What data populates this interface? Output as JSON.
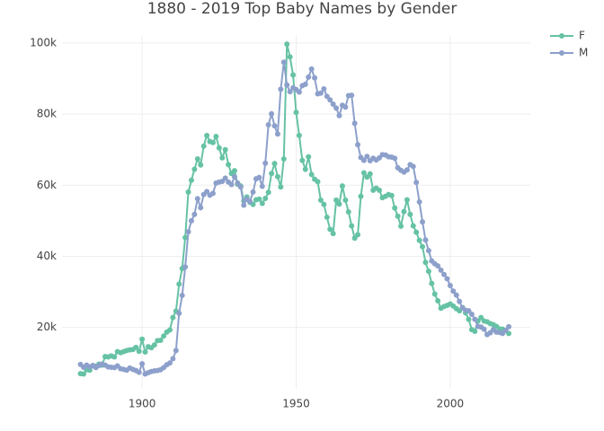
{
  "chart_data": {
    "type": "line",
    "title": "1880 - 2019 Top Baby Names by Gender",
    "x": [
      1880,
      1881,
      1882,
      1883,
      1884,
      1885,
      1886,
      1887,
      1888,
      1889,
      1890,
      1891,
      1892,
      1893,
      1894,
      1895,
      1896,
      1897,
      1898,
      1899,
      1900,
      1901,
      1902,
      1903,
      1904,
      1905,
      1906,
      1907,
      1908,
      1909,
      1910,
      1911,
      1912,
      1913,
      1914,
      1915,
      1916,
      1917,
      1918,
      1919,
      1920,
      1921,
      1922,
      1923,
      1924,
      1925,
      1926,
      1927,
      1928,
      1929,
      1930,
      1931,
      1932,
      1933,
      1934,
      1935,
      1936,
      1937,
      1938,
      1939,
      1940,
      1941,
      1942,
      1943,
      1944,
      1945,
      1946,
      1947,
      1948,
      1949,
      1950,
      1951,
      1952,
      1953,
      1954,
      1955,
      1956,
      1957,
      1958,
      1959,
      1960,
      1961,
      1962,
      1963,
      1964,
      1965,
      1966,
      1967,
      1968,
      1969,
      1970,
      1971,
      1972,
      1973,
      1974,
      1975,
      1976,
      1977,
      1978,
      1979,
      1980,
      1981,
      1982,
      1983,
      1984,
      1985,
      1986,
      1987,
      1988,
      1989,
      1990,
      1991,
      1992,
      1993,
      1994,
      1995,
      1996,
      1997,
      1998,
      1999,
      2000,
      2001,
      2002,
      2003,
      2004,
      2005,
      2006,
      2007,
      2008,
      2009,
      2010,
      2011,
      2012,
      2013,
      2014,
      2015,
      2016,
      2017,
      2018,
      2019
    ],
    "series": [
      {
        "name": "F",
        "color": "#66c2a5",
        "values": [
          7000,
          6900,
          8100,
          8000,
          9200,
          9100,
          9700,
          9400,
          11800,
          11700,
          12000,
          11700,
          13200,
          12900,
          13200,
          13500,
          13700,
          13800,
          14400,
          13300,
          16700,
          13100,
          14600,
          14300,
          15100,
          16300,
          16400,
          17600,
          18700,
          19300,
          22800,
          24600,
          32200,
          36600,
          45300,
          58100,
          61400,
          64500,
          67400,
          65700,
          71000,
          74000,
          72300,
          72000,
          73700,
          70500,
          67700,
          70000,
          65800,
          63300,
          64100,
          60300,
          59800,
          55600,
          56700,
          55200,
          54600,
          55900,
          56100,
          54900,
          56300,
          58000,
          63300,
          66100,
          62400,
          59500,
          67400,
          99700,
          96100,
          91000,
          80500,
          74000,
          67000,
          64500,
          68000,
          63000,
          61700,
          61000,
          55800,
          54600,
          51000,
          47600,
          46400,
          55800,
          54700,
          59800,
          55800,
          52500,
          48600,
          45100,
          46100,
          56900,
          63500,
          62300,
          63200,
          58600,
          59200,
          58600,
          56500,
          56900,
          57400,
          57100,
          53600,
          51300,
          48500,
          52600,
          55900,
          51800,
          48600,
          46800,
          44500,
          42700,
          38300,
          35800,
          32400,
          29400,
          27500,
          25400,
          25900,
          26200,
          26600,
          26000,
          25300,
          24700,
          25600,
          24100,
          22300,
          19400,
          18900,
          21800,
          22800,
          21800,
          21600,
          21100,
          20800,
          20300,
          19600,
          19500,
          19200,
          18300
        ]
      },
      {
        "name": "M",
        "color": "#8da0cb",
        "values": [
          9600,
          8800,
          9400,
          8900,
          9300,
          8700,
          9300,
          9700,
          9400,
          8900,
          8800,
          8700,
          9200,
          8400,
          8200,
          8000,
          8600,
          8200,
          7900,
          7400,
          9800,
          6900,
          7300,
          7600,
          7800,
          7900,
          8100,
          8700,
          9500,
          10000,
          11200,
          13500,
          24000,
          29000,
          37000,
          46900,
          50000,
          51800,
          56200,
          53700,
          57400,
          58200,
          57200,
          57700,
          60600,
          60900,
          61100,
          62000,
          60900,
          60200,
          62400,
          60600,
          59500,
          54400,
          56100,
          55400,
          58100,
          61800,
          62200,
          59700,
          66200,
          77000,
          80100,
          76700,
          74400,
          87000,
          94600,
          88200,
          86300,
          87400,
          86900,
          86200,
          88000,
          88400,
          90400,
          92700,
          90200,
          85700,
          85900,
          87100,
          85000,
          84000,
          82800,
          81700,
          79600,
          82500,
          82000,
          85200,
          85300,
          77400,
          71400,
          67800,
          67000,
          68100,
          66900,
          67600,
          67100,
          67700,
          68600,
          68500,
          68000,
          67900,
          67600,
          64900,
          64200,
          63700,
          64300,
          65800,
          65300,
          60800,
          55300,
          49700,
          44600,
          41600,
          38700,
          37900,
          37300,
          36100,
          34900,
          33700,
          31800,
          30200,
          29100,
          27300,
          25500,
          24800,
          24700,
          23700,
          22300,
          20300,
          20100,
          19500,
          18000,
          18500,
          19400,
          18700,
          18600,
          18300,
          19200,
          20200
        ]
      }
    ],
    "xlim": [
      1874,
      2026
    ],
    "xticks": [
      1900,
      1950,
      2000
    ],
    "ylim": [
      3000,
      102000
    ],
    "yticks": [
      {
        "value": 20000,
        "label": "20k"
      },
      {
        "value": 40000,
        "label": "40k"
      },
      {
        "value": 60000,
        "label": "60k"
      },
      {
        "value": 80000,
        "label": "80k"
      },
      {
        "value": 100000,
        "label": "100k"
      }
    ],
    "grid": true,
    "legend": "top-right"
  }
}
